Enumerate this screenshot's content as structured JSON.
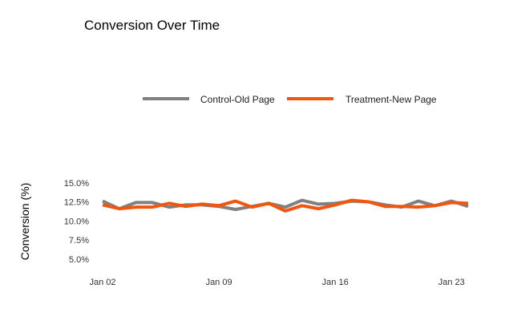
{
  "chart_data": {
    "type": "line",
    "title": "Conversion Over Time",
    "xlabel": "",
    "ylabel": "Conversion (%)",
    "x_ticks": [
      "Jan 02",
      "Jan 09",
      "Jan 16",
      "Jan 23"
    ],
    "y_ticks": [
      "5.0%",
      "7.5%",
      "10.0%",
      "12.5%",
      "15.0%"
    ],
    "ylim": [
      3.5,
      15.5
    ],
    "x_domain": [
      "2017-01-02",
      "2017-01-24"
    ],
    "x": [
      "2017-01-02",
      "2017-01-03",
      "2017-01-04",
      "2017-01-05",
      "2017-01-06",
      "2017-01-07",
      "2017-01-08",
      "2017-01-09",
      "2017-01-10",
      "2017-01-11",
      "2017-01-12",
      "2017-01-13",
      "2017-01-14",
      "2017-01-15",
      "2017-01-16",
      "2017-01-17",
      "2017-01-18",
      "2017-01-19",
      "2017-01-20",
      "2017-01-21",
      "2017-01-22",
      "2017-01-23",
      "2017-01-24"
    ],
    "series": [
      {
        "name": "Control-Old Page",
        "color": "#808080",
        "values": [
          12.6,
          11.6,
          12.4,
          12.4,
          11.8,
          12.1,
          12.1,
          11.9,
          11.5,
          11.9,
          12.3,
          11.8,
          12.7,
          12.2,
          12.3,
          12.6,
          12.5,
          12.1,
          11.8,
          12.6,
          12.0,
          12.6,
          11.9
        ]
      },
      {
        "name": "Treatment-New Page",
        "color": "#f2550e",
        "values": [
          12.1,
          11.6,
          11.8,
          11.8,
          12.3,
          11.9,
          12.2,
          12.0,
          12.6,
          11.8,
          12.3,
          11.3,
          12.0,
          11.6,
          12.1,
          12.7,
          12.5,
          11.9,
          11.9,
          11.8,
          12.0,
          12.4,
          12.3
        ]
      }
    ],
    "legend_position": "top",
    "grid": false
  }
}
